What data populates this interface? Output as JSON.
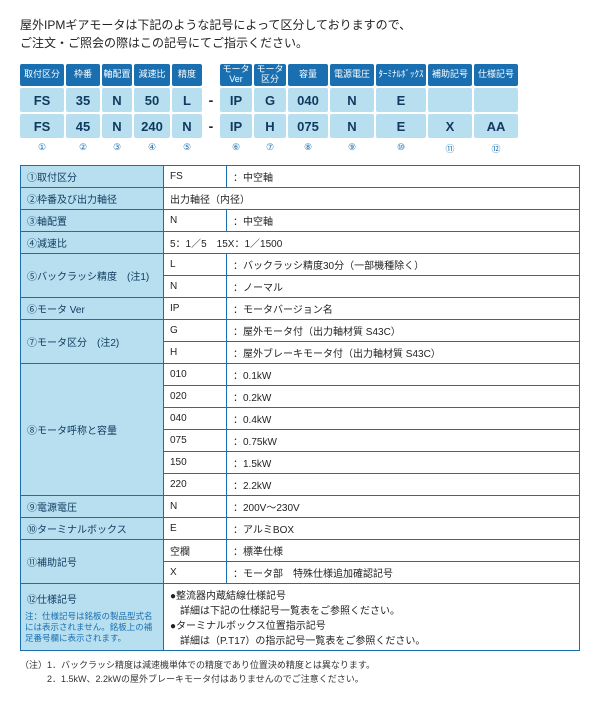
{
  "intro_line1": "屋外IPMギアモータは下記のような記号によって区分しておりますので、",
  "intro_line2": "ご注文・ご照会の際はこの記号にてご指示ください。",
  "headers": [
    "取付区分",
    "枠番",
    "軸配置",
    "減速比",
    "精度",
    "モータVer",
    "モータ区分",
    "容量",
    "電源電圧",
    "ﾀｰﾐﾅﾙﾎﾞｯｸｽ",
    "補助記号",
    "仕様記号"
  ],
  "row1": [
    "FS",
    "35",
    "N",
    "50",
    "L",
    "IP",
    "G",
    "040",
    "N",
    "E",
    "",
    ""
  ],
  "row2": [
    "FS",
    "45",
    "N",
    "240",
    "N",
    "IP",
    "H",
    "075",
    "N",
    "E",
    "X",
    "AA"
  ],
  "circled": [
    "①",
    "②",
    "③",
    "④",
    "⑤",
    "⑥",
    "⑦",
    "⑧",
    "⑨",
    "⑩",
    "⑪",
    "⑫"
  ],
  "spec": {
    "r1": {
      "label": "①取付区分",
      "code": "FS",
      "desc": "：中空軸"
    },
    "r2": {
      "label": "②枠番及び出力軸径",
      "desc": "出力軸径（内径）"
    },
    "r3": {
      "label": "③軸配置",
      "code": "N",
      "desc": "：中空軸"
    },
    "r4": {
      "label": "④減速比",
      "desc": "5：1／5　15X：1／1500"
    },
    "r5": {
      "label": "⑤バックラッシ精度　(注1)",
      "codeL": "L",
      "descL": "：バックラッシ精度30分（一部機種除く）",
      "codeN": "N",
      "descN": "：ノーマル"
    },
    "r6": {
      "label": "⑥モータ Ver",
      "code": "IP",
      "desc": "：モータバージョン名"
    },
    "r7": {
      "label": "⑦モータ区分　(注2)",
      "codeG": "G",
      "descG": "：屋外モータ付（出力軸材質 S43C）",
      "codeH": "H",
      "descH": "：屋外ブレーキモータ付（出力軸材質 S43C）"
    },
    "r8": {
      "label": "⑧モータ呼称と容量",
      "c": [
        "010",
        "020",
        "040",
        "075",
        "150",
        "220"
      ],
      "d": [
        "：0.1kW",
        "：0.2kW",
        "：0.4kW",
        "：0.75kW",
        "：1.5kW",
        "：2.2kW"
      ]
    },
    "r9": {
      "label": "⑨電源電圧",
      "code": "N",
      "desc": "：200V～230V"
    },
    "r10": {
      "label": "⑩ターミナルボックス",
      "code": "E",
      "desc": "：アルミBOX"
    },
    "r11": {
      "label": "⑪補助記号",
      "codeA": "空欄",
      "descA": "：標準仕様",
      "codeB": "X",
      "descB": "：モータ部　特殊仕様追加確認記号"
    },
    "r12": {
      "label": "⑫仕様記号",
      "desc1": "●整流器内蔵結線仕様記号",
      "desc1b": "　詳細は下記の仕様記号一覧表をご参照ください。",
      "desc2": "●ターミナルボックス位置指示記号",
      "desc2b": "　詳細は（P.T17）の指示記号一覧表をご参照ください。",
      "note": "注：仕様記号は銘板の製品型式名には表示されません。銘板上の補足番号欄に表示されます。"
    }
  },
  "footnote1": "（注）1．バックラッシ精度は減速機単体での精度であり位置決め精度とは異なります。",
  "footnote2": "　　　2．1.5kW、2.2kWの屋外ブレーキモータ付はありませんのでご注意ください。"
}
